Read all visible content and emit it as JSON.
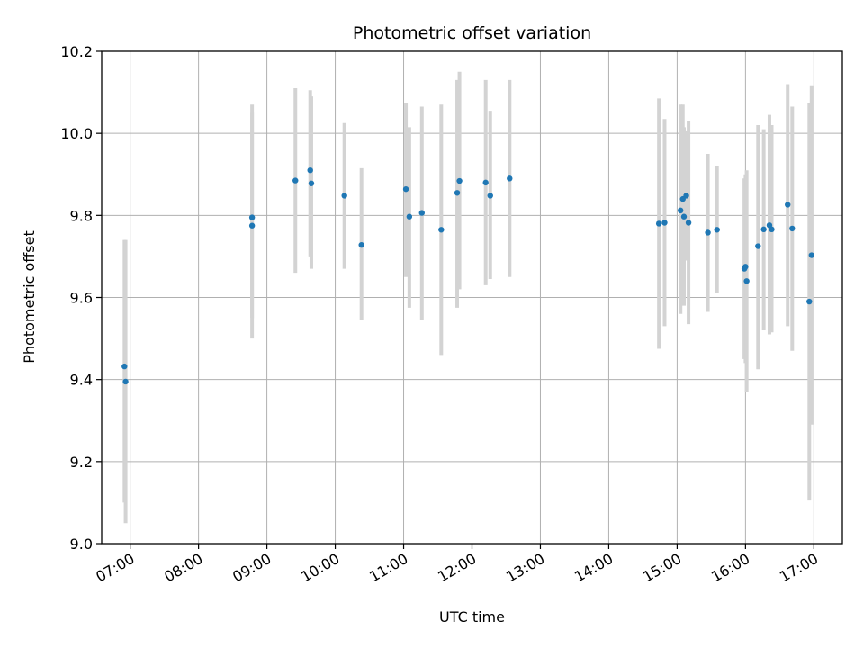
{
  "chart_data": {
    "type": "scatter",
    "title": "Photometric offset variation",
    "xlabel": "UTC time",
    "ylabel": "Photometric offset",
    "xlim": [
      "06:35",
      "17:25"
    ],
    "ylim": [
      9.0,
      10.2
    ],
    "grid": true,
    "x_ticks": [
      "07:00",
      "08:00",
      "09:00",
      "10:00",
      "11:00",
      "12:00",
      "13:00",
      "14:00",
      "15:00",
      "16:00",
      "17:00"
    ],
    "y_ticks": [
      "9.0",
      "9.2",
      "9.4",
      "9.6",
      "9.8",
      "10.0",
      "10.2"
    ],
    "colors": {
      "points": "#1f77b4",
      "errorbars": "#d3d3d3",
      "grid": "#b0b0b0"
    },
    "points": [
      {
        "x": "06:55",
        "y": 9.432,
        "ylow": 9.1,
        "yhigh": 9.74
      },
      {
        "x": "06:56",
        "y": 9.395,
        "ylow": 9.05,
        "yhigh": 9.74
      },
      {
        "x": "08:47",
        "y": 9.795,
        "ylow": 9.55,
        "yhigh": 10.07
      },
      {
        "x": "08:47",
        "y": 9.775,
        "ylow": 9.5,
        "yhigh": 10.05
      },
      {
        "x": "09:25",
        "y": 9.885,
        "ylow": 9.66,
        "yhigh": 10.11
      },
      {
        "x": "09:38",
        "y": 9.91,
        "ylow": 9.7,
        "yhigh": 10.105
      },
      {
        "x": "09:39",
        "y": 9.878,
        "ylow": 9.67,
        "yhigh": 10.09
      },
      {
        "x": "10:08",
        "y": 9.848,
        "ylow": 9.67,
        "yhigh": 10.025
      },
      {
        "x": "10:23",
        "y": 9.728,
        "ylow": 9.545,
        "yhigh": 9.915
      },
      {
        "x": "11:02",
        "y": 9.864,
        "ylow": 9.65,
        "yhigh": 10.075
      },
      {
        "x": "11:05",
        "y": 9.797,
        "ylow": 9.575,
        "yhigh": 10.015
      },
      {
        "x": "11:16",
        "y": 9.806,
        "ylow": 9.545,
        "yhigh": 10.065
      },
      {
        "x": "11:33",
        "y": 9.765,
        "ylow": 9.46,
        "yhigh": 10.07
      },
      {
        "x": "11:47",
        "y": 9.855,
        "ylow": 9.575,
        "yhigh": 10.13
      },
      {
        "x": "11:49",
        "y": 9.884,
        "ylow": 9.62,
        "yhigh": 10.15
      },
      {
        "x": "12:12",
        "y": 9.88,
        "ylow": 9.63,
        "yhigh": 10.13
      },
      {
        "x": "12:16",
        "y": 9.848,
        "ylow": 9.645,
        "yhigh": 10.055
      },
      {
        "x": "12:33",
        "y": 9.89,
        "ylow": 9.65,
        "yhigh": 10.13
      },
      {
        "x": "14:44",
        "y": 9.78,
        "ylow": 9.475,
        "yhigh": 10.085
      },
      {
        "x": "14:49",
        "y": 9.782,
        "ylow": 9.53,
        "yhigh": 10.035
      },
      {
        "x": "15:03",
        "y": 9.812,
        "ylow": 9.56,
        "yhigh": 10.07
      },
      {
        "x": "15:05",
        "y": 9.84,
        "ylow": 9.61,
        "yhigh": 10.07
      },
      {
        "x": "15:06",
        "y": 9.797,
        "ylow": 9.58,
        "yhigh": 10.015
      },
      {
        "x": "15:08",
        "y": 9.848,
        "ylow": 9.69,
        "yhigh": 10.005
      },
      {
        "x": "15:10",
        "y": 9.782,
        "ylow": 9.535,
        "yhigh": 10.03
      },
      {
        "x": "15:27",
        "y": 9.758,
        "ylow": 9.565,
        "yhigh": 9.95
      },
      {
        "x": "15:35",
        "y": 9.765,
        "ylow": 9.61,
        "yhigh": 9.92
      },
      {
        "x": "15:59",
        "y": 9.67,
        "ylow": 9.45,
        "yhigh": 9.89
      },
      {
        "x": "16:00",
        "y": 9.675,
        "ylow": 9.44,
        "yhigh": 9.9
      },
      {
        "x": "16:01",
        "y": 9.64,
        "ylow": 9.37,
        "yhigh": 9.91
      },
      {
        "x": "16:11",
        "y": 9.725,
        "ylow": 9.425,
        "yhigh": 10.02
      },
      {
        "x": "16:16",
        "y": 9.766,
        "ylow": 9.52,
        "yhigh": 10.01
      },
      {
        "x": "16:21",
        "y": 9.776,
        "ylow": 9.51,
        "yhigh": 10.045
      },
      {
        "x": "16:23",
        "y": 9.766,
        "ylow": 9.515,
        "yhigh": 10.02
      },
      {
        "x": "16:37",
        "y": 9.826,
        "ylow": 9.53,
        "yhigh": 10.12
      },
      {
        "x": "16:41",
        "y": 9.768,
        "ylow": 9.47,
        "yhigh": 10.065
      },
      {
        "x": "16:56",
        "y": 9.59,
        "ylow": 9.105,
        "yhigh": 10.075
      },
      {
        "x": "16:58",
        "y": 9.703,
        "ylow": 9.29,
        "yhigh": 10.115
      }
    ]
  }
}
